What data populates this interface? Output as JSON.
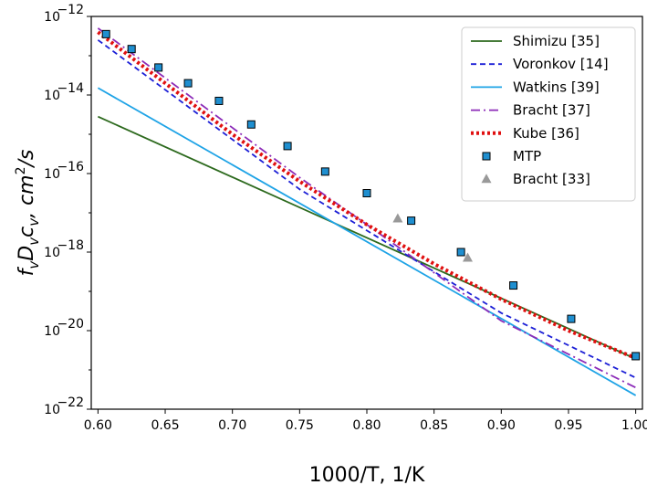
{
  "chart_data": {
    "type": "line",
    "xlabel": "1000/T, 1/K",
    "ylabel_parts": {
      "f": "f",
      "v": "v",
      "D": "D",
      "c": "c",
      "unit": ", cm",
      "sq": "2",
      "per": "/s"
    },
    "xlim": [
      0.595,
      1.005
    ],
    "ylim_log10": [
      -22,
      -12
    ],
    "yscale": "log",
    "legend_position": "top-right",
    "xticks": [
      0.6,
      0.65,
      0.7,
      0.75,
      0.8,
      0.85,
      0.9,
      0.95,
      1.0
    ],
    "xtick_labels": [
      "0.60",
      "0.65",
      "0.70",
      "0.75",
      "0.80",
      "0.85",
      "0.90",
      "0.95",
      "1.00"
    ],
    "yticks_exp": [
      -22,
      -20,
      -18,
      -16,
      -14,
      -12
    ],
    "ytick_base": "10",
    "yticks_text": [
      "−22",
      "−20",
      "−18",
      "−16",
      "−14",
      "−12"
    ],
    "series": [
      {
        "name": "Shimizu [35]",
        "kind": "line",
        "color": "#2d6a1e",
        "dash": "",
        "width": 1.8,
        "x": [
          0.6,
          1.0
        ],
        "log10y": [
          -14.55,
          -20.72
        ]
      },
      {
        "name": "Voronkov [14]",
        "kind": "line",
        "color": "#1c1fd6",
        "dash": "6,4",
        "width": 1.8,
        "x": [
          0.6,
          0.75,
          0.8,
          0.9,
          1.0
        ],
        "log10y": [
          -12.6,
          -16.4,
          -17.45,
          -19.55,
          -21.2
        ]
      },
      {
        "name": "Watkins [39]",
        "kind": "line",
        "color": "#1ea3e6",
        "dash": "",
        "width": 1.8,
        "x": [
          0.6,
          1.0
        ],
        "log10y": [
          -13.82,
          -21.65
        ]
      },
      {
        "name": "Bracht [37]",
        "kind": "line",
        "color": "#8c2bb8",
        "dash": "10,4,2,4",
        "width": 1.8,
        "x": [
          0.6,
          0.75,
          0.8,
          0.9,
          1.0
        ],
        "log10y": [
          -12.3,
          -16.1,
          -17.3,
          -19.75,
          -21.45
        ]
      },
      {
        "name": "Kube [36]",
        "kind": "line",
        "color": "#e01010",
        "dash": "3,3",
        "width": 4,
        "x": [
          0.6,
          0.7,
          0.75,
          0.8,
          0.85,
          0.9,
          0.95,
          1.0
        ],
        "log10y": [
          -12.4,
          -15.0,
          -16.2,
          -17.3,
          -18.3,
          -19.2,
          -20.0,
          -20.7
        ]
      },
      {
        "name": "MTP",
        "kind": "square",
        "color": "#1f8fd0",
        "x": [
          0.606,
          0.625,
          0.645,
          0.667,
          0.69,
          0.714,
          0.741,
          0.769,
          0.8,
          0.833,
          0.87,
          0.909,
          0.952,
          1.0
        ],
        "log10y": [
          -12.45,
          -12.83,
          -13.3,
          -13.7,
          -14.15,
          -14.75,
          -15.3,
          -15.95,
          -16.5,
          -17.2,
          -18.0,
          -18.85,
          -19.7,
          -20.65
        ]
      },
      {
        "name": "Bracht [33]",
        "kind": "triangle",
        "color": "#999999",
        "x": [
          0.823,
          0.875
        ],
        "log10y": [
          -17.15,
          -18.15
        ]
      }
    ]
  }
}
